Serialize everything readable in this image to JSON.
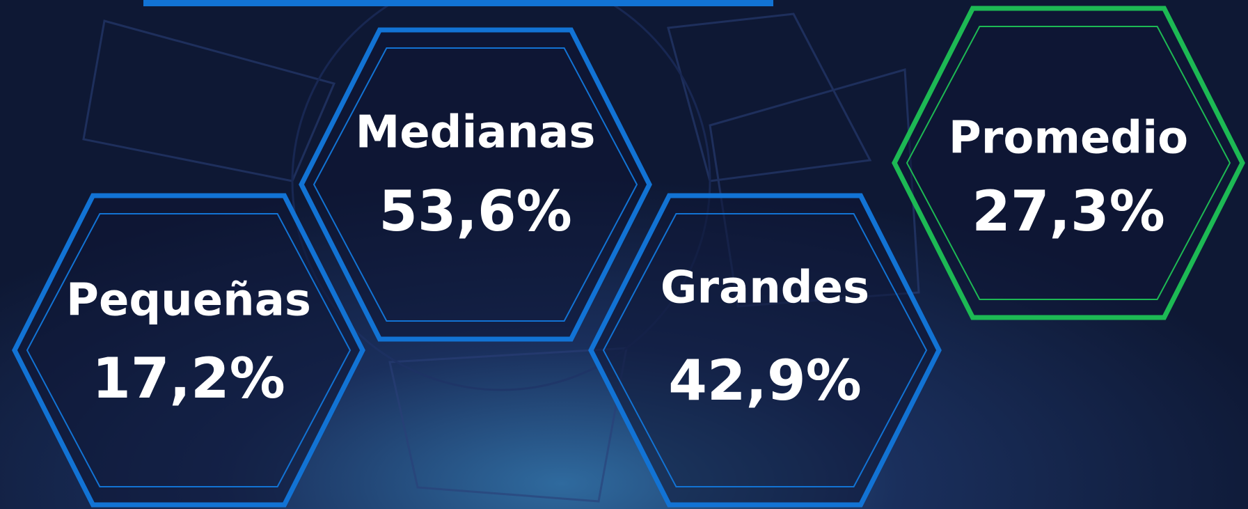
{
  "items": [
    {
      "label": "Pequeñas",
      "value": "17,2%"
    },
    {
      "label": "Medianas",
      "value": "53,6%"
    },
    {
      "label": "Grandes",
      "value": "42,9%"
    },
    {
      "label": "Promedio",
      "value": "27,3%"
    }
  ]
}
